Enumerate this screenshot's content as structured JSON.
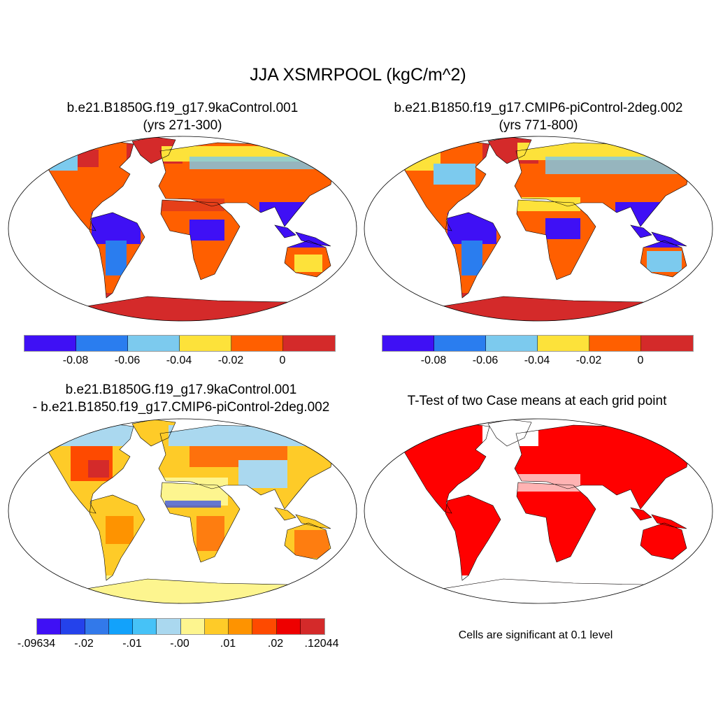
{
  "title": "JJA XSMRPOOL (kgC/m^2)",
  "panels": {
    "top_left": {
      "title": "b.e21.B1850G.f19_g17.9kaControl.001",
      "subtitle": "(yrs 271-300)"
    },
    "top_right": {
      "title": "b.e21.B1850.f19_g17.CMIP6-piControl-2deg.002",
      "subtitle": "(yrs 771-800)"
    },
    "bottom_left": {
      "title": "b.e21.B1850G.f19_g17.9kaControl.001",
      "subtitle": "- b.e21.B1850.f19_g17.CMIP6-piControl-2deg.002"
    },
    "bottom_right": {
      "title": "T-Test of two Case means at each grid point",
      "note": "Cells are significant at 0.1 level"
    }
  },
  "colorbar_cases": {
    "colors": [
      "#3f10f5",
      "#2a7def",
      "#7ccaee",
      "#fde23a",
      "#ff5f00",
      "#d42a2a"
    ],
    "labels": [
      "-0.08",
      "-0.06",
      "-0.04",
      "-0.02",
      "0"
    ]
  },
  "colorbar_diff": {
    "colors": [
      "#3f10f5",
      "#2442eb",
      "#3279ea",
      "#12a2fb",
      "#46c2f7",
      "#aad8ef",
      "#fdf58f",
      "#fecb28",
      "#fe9300",
      "#fe4a00",
      "#ee0000",
      "#d42a2a"
    ],
    "labels": [
      "-.09634",
      "-.02",
      "-.01",
      "-.00",
      ".01",
      ".02",
      ".12044"
    ]
  },
  "significance_color": "#ff0000"
}
